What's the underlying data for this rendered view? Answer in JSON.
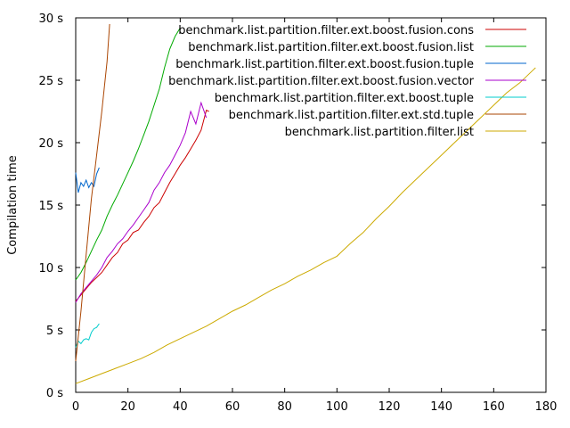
{
  "chart_data": {
    "type": "line",
    "title": "",
    "xlabel": "",
    "ylabel": "Compilation time",
    "xlim": [
      0,
      180
    ],
    "ylim": [
      0,
      30
    ],
    "x_ticks": [
      "0",
      "20",
      "40",
      "60",
      "80",
      "100",
      "120",
      "140",
      "160",
      "180"
    ],
    "y_ticks": [
      "0 s",
      "5 s",
      "10 s",
      "15 s",
      "20 s",
      "25 s",
      "30 s"
    ],
    "x_tick_values": [
      0,
      20,
      40,
      60,
      80,
      100,
      120,
      140,
      160,
      180
    ],
    "y_tick_values": [
      0,
      5,
      10,
      15,
      20,
      25,
      30
    ],
    "legend_position": "top-right",
    "grid": false,
    "series": [
      {
        "name": "benchmark.list.partition.filter.ext.boost.fusion.cons",
        "color": "#cc0000",
        "points": [
          [
            0,
            7.3
          ],
          [
            2,
            7.8
          ],
          [
            4,
            8.3
          ],
          [
            6,
            8.8
          ],
          [
            8,
            9.2
          ],
          [
            10,
            9.6
          ],
          [
            12,
            10.2
          ],
          [
            14,
            10.8
          ],
          [
            16,
            11.2
          ],
          [
            18,
            11.9
          ],
          [
            20,
            12.2
          ],
          [
            22,
            12.8
          ],
          [
            24,
            13.0
          ],
          [
            26,
            13.6
          ],
          [
            28,
            14.1
          ],
          [
            30,
            14.8
          ],
          [
            32,
            15.2
          ],
          [
            34,
            16.0
          ],
          [
            36,
            16.8
          ],
          [
            38,
            17.5
          ],
          [
            40,
            18.2
          ],
          [
            42,
            18.8
          ],
          [
            44,
            19.5
          ],
          [
            46,
            20.2
          ],
          [
            48,
            21.0
          ],
          [
            50,
            22.6
          ],
          [
            51,
            22.5
          ]
        ]
      },
      {
        "name": "benchmark.list.partition.filter.ext.boost.fusion.list",
        "color": "#00aa00",
        "points": [
          [
            0,
            9.0
          ],
          [
            2,
            9.6
          ],
          [
            4,
            10.4
          ],
          [
            6,
            11.3
          ],
          [
            8,
            12.2
          ],
          [
            10,
            13.0
          ],
          [
            12,
            14.1
          ],
          [
            14,
            15.0
          ],
          [
            16,
            15.8
          ],
          [
            18,
            16.7
          ],
          [
            20,
            17.6
          ],
          [
            22,
            18.5
          ],
          [
            24,
            19.5
          ],
          [
            26,
            20.6
          ],
          [
            28,
            21.7
          ],
          [
            30,
            23.0
          ],
          [
            32,
            24.3
          ],
          [
            34,
            26.0
          ],
          [
            36,
            27.5
          ],
          [
            38,
            28.5
          ],
          [
            40,
            29.2
          ]
        ]
      },
      {
        "name": "benchmark.list.partition.filter.ext.boost.fusion.tuple",
        "color": "#0066cc",
        "points": [
          [
            0,
            17.6
          ],
          [
            1,
            16.0
          ],
          [
            2,
            16.8
          ],
          [
            3,
            16.5
          ],
          [
            4,
            17.0
          ],
          [
            5,
            16.4
          ],
          [
            6,
            16.8
          ],
          [
            7,
            16.5
          ],
          [
            8,
            17.5
          ],
          [
            9,
            18.0
          ]
        ]
      },
      {
        "name": "benchmark.list.partition.filter.ext.boost.fusion.vector",
        "color": "#aa00cc",
        "points": [
          [
            0,
            7.2
          ],
          [
            2,
            7.9
          ],
          [
            4,
            8.4
          ],
          [
            6,
            8.9
          ],
          [
            8,
            9.4
          ],
          [
            10,
            10.0
          ],
          [
            12,
            10.8
          ],
          [
            14,
            11.3
          ],
          [
            16,
            11.9
          ],
          [
            18,
            12.3
          ],
          [
            20,
            12.9
          ],
          [
            22,
            13.4
          ],
          [
            24,
            14.0
          ],
          [
            26,
            14.6
          ],
          [
            28,
            15.2
          ],
          [
            30,
            16.2
          ],
          [
            32,
            16.8
          ],
          [
            34,
            17.6
          ],
          [
            36,
            18.2
          ],
          [
            38,
            19.0
          ],
          [
            40,
            19.8
          ],
          [
            42,
            20.8
          ],
          [
            44,
            22.5
          ],
          [
            46,
            21.5
          ],
          [
            48,
            23.2
          ],
          [
            50,
            22.0
          ]
        ]
      },
      {
        "name": "benchmark.list.partition.filter.ext.boost.tuple",
        "color": "#00cccc",
        "points": [
          [
            0,
            3.6
          ],
          [
            1,
            4.1
          ],
          [
            2,
            3.9
          ],
          [
            3,
            4.2
          ],
          [
            4,
            4.3
          ],
          [
            5,
            4.2
          ],
          [
            6,
            4.8
          ],
          [
            7,
            5.1
          ],
          [
            8,
            5.2
          ],
          [
            9,
            5.5
          ]
        ]
      },
      {
        "name": "benchmark.list.partition.filter.ext.std.tuple",
        "color": "#aa4400",
        "points": [
          [
            0,
            2.5
          ],
          [
            2,
            6.5
          ],
          [
            4,
            11.0
          ],
          [
            6,
            15.5
          ],
          [
            8,
            19.0
          ],
          [
            10,
            22.5
          ],
          [
            12,
            26.5
          ],
          [
            13,
            29.5
          ]
        ]
      },
      {
        "name": "benchmark.list.partition.filter.list",
        "color": "#ccaa00",
        "points": [
          [
            0,
            0.7
          ],
          [
            5,
            1.1
          ],
          [
            10,
            1.5
          ],
          [
            15,
            1.9
          ],
          [
            20,
            2.3
          ],
          [
            25,
            2.7
          ],
          [
            30,
            3.2
          ],
          [
            35,
            3.8
          ],
          [
            40,
            4.3
          ],
          [
            45,
            4.8
          ],
          [
            50,
            5.3
          ],
          [
            55,
            5.9
          ],
          [
            60,
            6.5
          ],
          [
            65,
            7.0
          ],
          [
            70,
            7.6
          ],
          [
            75,
            8.2
          ],
          [
            80,
            8.7
          ],
          [
            85,
            9.3
          ],
          [
            90,
            9.8
          ],
          [
            95,
            10.4
          ],
          [
            100,
            10.9
          ],
          [
            105,
            11.9
          ],
          [
            110,
            12.8
          ],
          [
            115,
            13.9
          ],
          [
            120,
            14.9
          ],
          [
            125,
            16.0
          ],
          [
            130,
            17.0
          ],
          [
            135,
            18.0
          ],
          [
            140,
            19.0
          ],
          [
            145,
            20.0
          ],
          [
            150,
            21.0
          ],
          [
            155,
            22.0
          ],
          [
            160,
            23.0
          ],
          [
            165,
            24.0
          ],
          [
            170,
            24.8
          ],
          [
            175,
            25.8
          ],
          [
            176,
            26.0
          ]
        ]
      }
    ]
  }
}
